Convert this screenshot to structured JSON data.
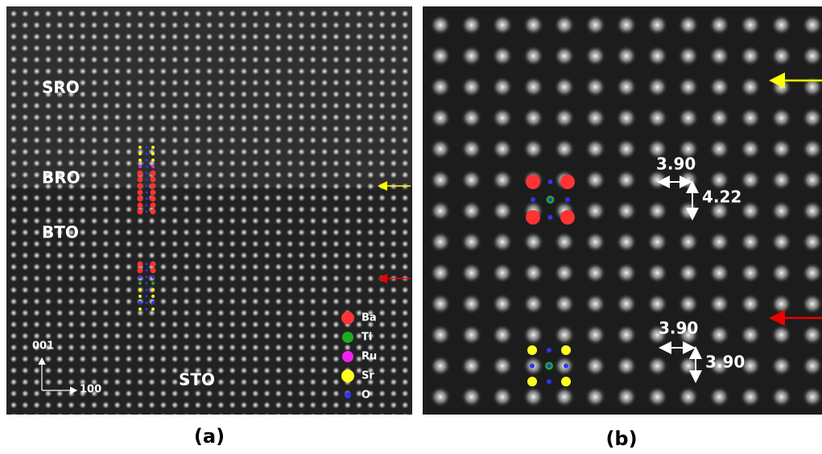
{
  "panel_a": {
    "layers": [
      "SRO",
      "BRO",
      "BTO",
      "STO"
    ],
    "axes": {
      "vertical": "001",
      "horizontal": "100"
    },
    "legend": [
      "Ba",
      "Ti",
      "Ru",
      "Sr",
      "O"
    ],
    "caption": "(a)"
  },
  "panel_b": {
    "upper": {
      "horizontal": "3.90",
      "vertical": "4.22"
    },
    "lower": {
      "horizontal": "3.90",
      "vertical": "3.90"
    },
    "caption": "(b)"
  }
}
